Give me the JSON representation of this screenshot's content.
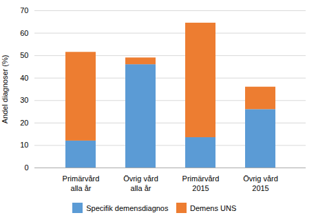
{
  "chart_data": {
    "type": "bar",
    "stacked": true,
    "categories": [
      "Primärvård\nalla år",
      "Övrig vård\nalla år",
      "Primärvård\n2015",
      "Övrig vård\n2015"
    ],
    "series": [
      {
        "name": "Specifik demensdiagnos",
        "color": "#5b9bd5",
        "values": [
          12,
          46,
          13.5,
          26
        ]
      },
      {
        "name": "Demens UNS",
        "color": "#ed7d31",
        "values": [
          39.5,
          3,
          51,
          10
        ]
      }
    ],
    "ylabel": "Andel diagnoser (%)",
    "ylim": [
      0,
      70
    ],
    "yticks": [
      0,
      10,
      20,
      30,
      40,
      50,
      60,
      70
    ],
    "grid": true,
    "legend": "bottom"
  }
}
